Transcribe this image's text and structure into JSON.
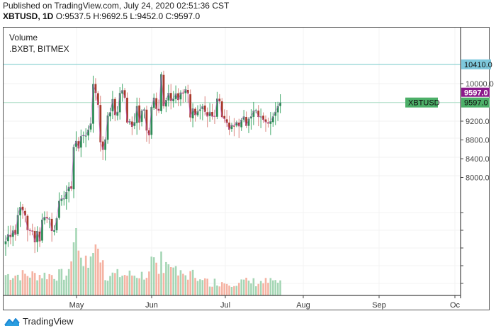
{
  "header": {
    "published": "Published on TradingView.com, July 24, 2020 02:51:36 CST",
    "symbol_interval": "XBTUSD, 1D",
    "ohlc": "O:9537.5 H:9692.5 L:9452.0 C:9597.0"
  },
  "legend": {
    "line1": "Volume",
    "line2": ".BXBT, BITMEX"
  },
  "price_labels": {
    "horizontal_line": "10410.0",
    "last_price": "9597.0",
    "symbol_tag": "XBTUSD",
    "symbol_price": "9597.0"
  },
  "colors": {
    "up": "#26a69a",
    "up_candle": "#2e8b57",
    "down_candle": "#a83a2b",
    "volume_up": "#a5d6b5",
    "volume_down": "#f5b3a3",
    "hline": "#8fd3d3",
    "price_line": "#a8dcc4",
    "last_price_bg": "#8b1a8b",
    "symbol_bg": "#4caf68",
    "hline_label_bg": "#7ec8dc",
    "ma_line": "#c060c8"
  },
  "brand": {
    "name": "TradingView"
  },
  "chart_data": {
    "type": "candlestick",
    "title": "XBTUSD, 1D",
    "subtitle": "Volume .BXBT, BITMEX",
    "x_ticks": [
      "May",
      "Jun",
      "Jul",
      "Aug",
      "Sep",
      "Oc"
    ],
    "y_ticks": [
      10000.0,
      9200.0,
      8800.0,
      8400.0,
      8000.0
    ],
    "y_tick_labels": [
      "10000.0",
      "9200.0",
      "8800.0",
      "8400.0",
      "8000.0"
    ],
    "horizontal_line": 10410.0,
    "last_close": 9597.0,
    "last_ohlc": {
      "open": 9537.5,
      "high": 9692.5,
      "low": 9452.0,
      "close": 9597.0
    },
    "date_range": [
      "2020-04-01",
      "2020-07-23"
    ],
    "closes": [
      6640,
      6790,
      6730,
      6870,
      6780,
      7200,
      7370,
      7300,
      7190,
      6880,
      6880,
      6850,
      6620,
      6860,
      6640,
      7100,
      7160,
      7130,
      7120,
      6860,
      6880,
      7130,
      7500,
      7550,
      7550,
      7690,
      7800,
      7760,
      8650,
      8780,
      8620,
      8880,
      8900,
      8890,
      9020,
      9150,
      9990,
      9800,
      9550,
      8750,
      8590,
      8810,
      9320,
      9390,
      9670,
      9330,
      9400,
      9800,
      9860,
      9700,
      9170,
      9200,
      9080,
      9180,
      9520,
      9170,
      9420,
      9450,
      9000,
      8900,
      9500,
      9700,
      9460,
      9420,
      10200,
      9520,
      9650,
      9800,
      9630,
      9680,
      9790,
      9650,
      9810,
      9790,
      9880,
      9790,
      9280,
      9470,
      9330,
      9410,
      9450,
      9520,
      9400,
      9300,
      9400,
      9300,
      9300,
      9680,
      9620,
      9290,
      9250,
      9160,
      9020,
      9120,
      9100,
      9180,
      9090,
      9230,
      9300,
      9100,
      9250,
      9300,
      9420,
      9430,
      9290,
      9300,
      9230,
      9180,
      9150,
      9200,
      9300,
      9400,
      9520,
      9597
    ],
    "volume_relative": "bars scaled 0-1 of pane height; peak around late April/early May and early June"
  }
}
